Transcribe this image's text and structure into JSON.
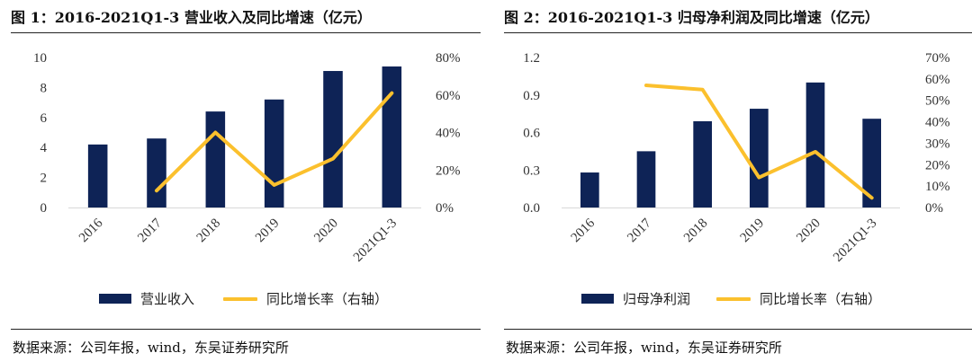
{
  "chart_data": [
    {
      "type": "bar",
      "title": "图 1：2016-2021Q1-3 营业收入及同比增速（亿元）",
      "categories": [
        "2016",
        "2017",
        "2018",
        "2019",
        "2020",
        "2021Q1-3"
      ],
      "series": [
        {
          "name": "营业收入",
          "type": "bar",
          "axis": "left",
          "values": [
            4.2,
            4.6,
            6.4,
            7.2,
            9.1,
            9.4
          ]
        },
        {
          "name": "同比增长率（右轴）",
          "type": "line",
          "axis": "right",
          "values": [
            null,
            0.09,
            0.4,
            0.12,
            0.26,
            0.61
          ]
        }
      ],
      "ylim_left": [
        0,
        10
      ],
      "yticks_left": [
        "0",
        "2",
        "4",
        "6",
        "8",
        "10"
      ],
      "ylim_right": [
        0,
        0.8
      ],
      "yticks_right": [
        "0%",
        "20%",
        "40%",
        "60%",
        "80%"
      ],
      "grid": false,
      "legend_position": "bottom",
      "source": "数据来源：公司年报，wind，东吴证券研究所"
    },
    {
      "type": "bar",
      "title": "图 2：2016-2021Q1-3 归母净利润及同比增速（亿元）",
      "categories": [
        "2016",
        "2017",
        "2018",
        "2019",
        "2020",
        "2021Q1-3"
      ],
      "series": [
        {
          "name": "归母净利润",
          "type": "bar",
          "axis": "left",
          "values": [
            0.28,
            0.45,
            0.69,
            0.79,
            1.0,
            0.71
          ]
        },
        {
          "name": "同比增长率（右轴）",
          "type": "line",
          "axis": "right",
          "values": [
            null,
            0.57,
            0.55,
            0.14,
            0.26,
            0.045
          ]
        }
      ],
      "ylim_left": [
        0,
        1.2
      ],
      "yticks_left": [
        "0.0",
        "0.3",
        "0.6",
        "0.9",
        "1.2"
      ],
      "ylim_right": [
        0,
        0.7
      ],
      "yticks_right": [
        "0%",
        "10%",
        "20%",
        "30%",
        "40%",
        "50%",
        "60%",
        "70%"
      ],
      "grid": false,
      "legend_position": "bottom",
      "source": "数据来源：公司年报，wind，东吴证券研究所"
    }
  ],
  "colors": {
    "bar": "#0e2356",
    "line": "#fbc02d"
  }
}
